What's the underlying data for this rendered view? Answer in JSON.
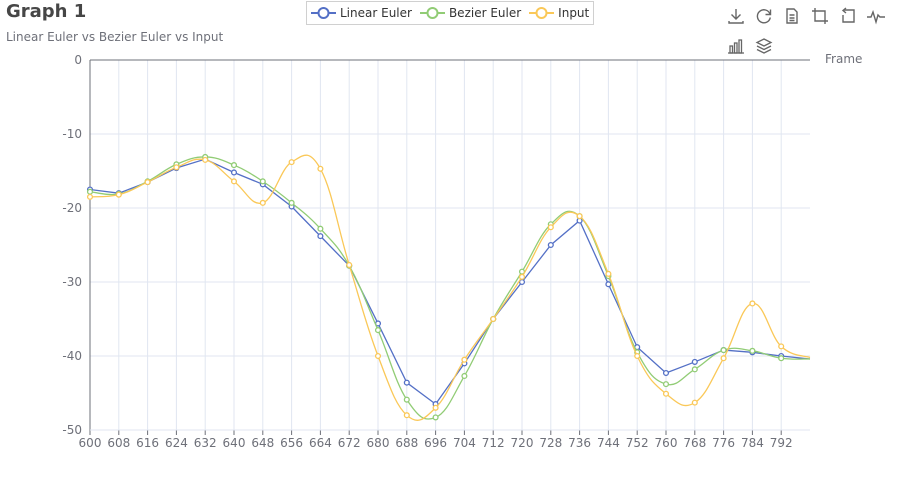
{
  "title": "Graph 1",
  "subtitle": "Linear Euler vs Bezier Euler vs Input",
  "toolbox": {
    "icons": [
      "download-icon",
      "refresh-icon",
      "data-view-icon",
      "zoom-icon",
      "zoom-reset-icon",
      "line-chart-icon",
      "bar-chart-icon",
      "stack-icon"
    ]
  },
  "colors": {
    "linear": "#5470c6",
    "bezier": "#91cc75",
    "input": "#fac858",
    "grid": "#e0e6f1",
    "axis": "#6e7079"
  },
  "chart_data": {
    "type": "line",
    "xlabel": "Frame",
    "ylabel": "",
    "xlim": [
      600,
      800
    ],
    "ylim": [
      -50,
      0
    ],
    "x_ticks": [
      "600",
      "608",
      "616",
      "624",
      "632",
      "640",
      "648",
      "656",
      "664",
      "672",
      "680",
      "688",
      "696",
      "704",
      "712",
      "720",
      "728",
      "736",
      "744",
      "752",
      "760",
      "768",
      "776",
      "784",
      "792"
    ],
    "y_ticks": [
      "0",
      "-10",
      "-20",
      "-30",
      "-40",
      "-50"
    ],
    "legend_position": "top-center",
    "grid": true,
    "series": [
      {
        "name": "Linear Euler",
        "color": "#5470c6",
        "smooth": false,
        "x": [
          600,
          608,
          616,
          624,
          632,
          640,
          648,
          656,
          664,
          672,
          680,
          688,
          696,
          704,
          712,
          720,
          728,
          736,
          744,
          752,
          760,
          768,
          776,
          784,
          792,
          800
        ],
        "y": [
          -17.5,
          -18.0,
          -16.5,
          -14.6,
          -13.4,
          -15.2,
          -16.8,
          -19.8,
          -23.8,
          -27.8,
          -35.6,
          -43.6,
          -46.5,
          -41.0,
          -35.0,
          -30.0,
          -25.0,
          -21.7,
          -30.3,
          -38.8,
          -42.3,
          -40.8,
          -39.2,
          -39.5,
          -40.0,
          -40.4
        ]
      },
      {
        "name": "Bezier Euler",
        "color": "#91cc75",
        "smooth": true,
        "x": [
          600,
          608,
          616,
          624,
          632,
          640,
          648,
          656,
          664,
          672,
          680,
          688,
          696,
          704,
          712,
          720,
          728,
          736,
          744,
          752,
          760,
          768,
          776,
          784,
          792,
          800
        ],
        "y": [
          -17.8,
          -18.1,
          -16.4,
          -14.1,
          -13.1,
          -14.2,
          -16.4,
          -19.3,
          -22.8,
          -27.8,
          -36.5,
          -45.9,
          -48.3,
          -42.7,
          -35.0,
          -28.6,
          -22.2,
          -21.1,
          -29.2,
          -39.5,
          -43.8,
          -41.8,
          -39.2,
          -39.3,
          -40.3,
          -40.4
        ]
      },
      {
        "name": "Input",
        "color": "#fac858",
        "smooth": true,
        "x": [
          600,
          608,
          616,
          624,
          632,
          640,
          648,
          656,
          664,
          672,
          680,
          688,
          696,
          704,
          712,
          720,
          728,
          736,
          744,
          752,
          760,
          768,
          776,
          784,
          792,
          800
        ],
        "y": [
          -18.5,
          -18.2,
          -16.5,
          -14.5,
          -13.5,
          -16.4,
          -19.3,
          -13.8,
          -14.7,
          -27.7,
          -40.0,
          -48.0,
          -47.0,
          -40.5,
          -35.0,
          -29.3,
          -22.6,
          -21.1,
          -28.9,
          -40.0,
          -45.1,
          -46.3,
          -40.3,
          -32.9,
          -38.7,
          -40.2
        ]
      }
    ]
  }
}
